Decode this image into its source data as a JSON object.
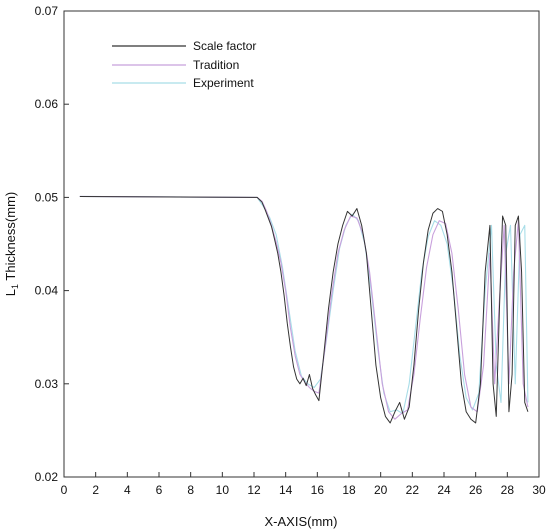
{
  "chart_data": {
    "type": "line",
    "xlabel": "X-AXIS(mm)",
    "ylabel_main": "L",
    "ylabel_sub": "1",
    "ylabel_rest": " Thickness(mm)",
    "xlim": [
      0,
      30
    ],
    "ylim": [
      0.02,
      0.07
    ],
    "x_ticks": [
      0,
      2,
      4,
      6,
      8,
      10,
      12,
      14,
      16,
      18,
      20,
      22,
      24,
      26,
      28,
      30
    ],
    "y_ticks": [
      0.02,
      0.03,
      0.04,
      0.05,
      0.06,
      0.07
    ],
    "x_tick_labels": [
      "0",
      "2",
      "4",
      "6",
      "8",
      "10",
      "12",
      "14",
      "16",
      "18",
      "20",
      "22",
      "24",
      "26",
      "28",
      "30"
    ],
    "y_tick_labels": [
      "0.02",
      "0.03",
      "0.04",
      "0.05",
      "0.06",
      "0.07"
    ],
    "grid": false,
    "legend_position": "top-left",
    "series": [
      {
        "name": "Scale factor",
        "color": "#333333",
        "x": [
          1.0,
          12.2,
          12.5,
          12.7,
          12.9,
          13.1,
          13.3,
          13.5,
          13.7,
          13.9,
          14.1,
          14.3,
          14.5,
          14.7,
          14.9,
          15.1,
          15.3,
          15.5,
          15.7,
          15.9,
          16.1,
          16.4,
          16.7,
          17.0,
          17.3,
          17.6,
          17.9,
          18.2,
          18.5,
          18.8,
          19.1,
          19.4,
          19.7,
          20.0,
          20.3,
          20.6,
          20.9,
          21.2,
          21.5,
          21.8,
          22.1,
          22.4,
          22.7,
          23.0,
          23.3,
          23.6,
          23.9,
          24.2,
          24.5,
          24.8,
          25.1,
          25.4,
          25.7,
          26.0,
          26.3,
          26.6,
          26.9,
          27.1,
          27.3,
          27.5,
          27.7,
          27.9,
          28.1,
          28.3,
          28.5,
          28.7,
          28.9,
          29.1,
          29.3
        ],
        "y": [
          0.0501,
          0.05,
          0.0495,
          0.0487,
          0.0478,
          0.0469,
          0.0455,
          0.044,
          0.042,
          0.0395,
          0.0365,
          0.034,
          0.0318,
          0.0305,
          0.03,
          0.0306,
          0.0298,
          0.031,
          0.0295,
          0.0288,
          0.0282,
          0.033,
          0.038,
          0.042,
          0.045,
          0.047,
          0.0485,
          0.048,
          0.0488,
          0.047,
          0.044,
          0.038,
          0.032,
          0.0285,
          0.0265,
          0.0258,
          0.027,
          0.028,
          0.0262,
          0.0275,
          0.032,
          0.038,
          0.043,
          0.0465,
          0.0483,
          0.0488,
          0.0485,
          0.046,
          0.042,
          0.036,
          0.03,
          0.027,
          0.0262,
          0.0258,
          0.03,
          0.042,
          0.047,
          0.03,
          0.0265,
          0.038,
          0.048,
          0.047,
          0.027,
          0.031,
          0.047,
          0.048,
          0.042,
          0.028,
          0.027
        ]
      },
      {
        "name": "Tradition",
        "color": "#c8a0dc",
        "x": [
          1.0,
          12.2,
          12.5,
          12.8,
          13.1,
          13.4,
          13.7,
          14.0,
          14.3,
          14.6,
          14.9,
          15.2,
          15.5,
          15.8,
          16.1,
          16.5,
          16.9,
          17.3,
          17.7,
          18.1,
          18.5,
          18.9,
          19.3,
          19.7,
          20.1,
          20.5,
          20.9,
          21.3,
          21.7,
          22.1,
          22.5,
          22.9,
          23.3,
          23.7,
          24.1,
          24.5,
          24.9,
          25.3,
          25.7,
          26.1,
          26.5,
          26.9,
          27.2,
          27.5,
          27.8,
          28.1,
          28.4,
          28.7,
          29.0,
          29.3
        ],
        "y": [
          0.0501,
          0.05,
          0.0496,
          0.0485,
          0.047,
          0.0452,
          0.043,
          0.04,
          0.036,
          0.033,
          0.031,
          0.0302,
          0.0296,
          0.0292,
          0.029,
          0.034,
          0.0395,
          0.044,
          0.0465,
          0.048,
          0.0478,
          0.046,
          0.042,
          0.036,
          0.03,
          0.027,
          0.0262,
          0.0268,
          0.0272,
          0.031,
          0.037,
          0.0425,
          0.046,
          0.0475,
          0.0472,
          0.044,
          0.038,
          0.031,
          0.0275,
          0.027,
          0.032,
          0.044,
          0.03,
          0.039,
          0.047,
          0.03,
          0.042,
          0.0475,
          0.03,
          0.0275
        ]
      },
      {
        "name": "Experiment",
        "color": "#a8dde8",
        "x": [
          1.0,
          12.2,
          12.6,
          13.0,
          13.4,
          13.8,
          14.2,
          14.6,
          15.0,
          15.4,
          15.8,
          16.2,
          16.6,
          17.0,
          17.4,
          17.8,
          18.2,
          18.6,
          19.0,
          19.4,
          19.8,
          20.2,
          20.6,
          21.0,
          21.4,
          21.8,
          22.2,
          22.6,
          23.0,
          23.4,
          23.8,
          24.2,
          24.6,
          25.0,
          25.4,
          25.8,
          26.2,
          26.6,
          27.0,
          27.3,
          27.6,
          27.9,
          28.2,
          28.5,
          28.8,
          29.1,
          29.3
        ],
        "y": [
          0.0501,
          0.05,
          0.049,
          0.0478,
          0.046,
          0.0425,
          0.038,
          0.0335,
          0.0308,
          0.03,
          0.0296,
          0.0305,
          0.035,
          0.04,
          0.0445,
          0.047,
          0.0482,
          0.0475,
          0.045,
          0.04,
          0.034,
          0.029,
          0.027,
          0.0272,
          0.0268,
          0.03,
          0.036,
          0.042,
          0.0458,
          0.0475,
          0.047,
          0.045,
          0.04,
          0.033,
          0.0285,
          0.0272,
          0.029,
          0.04,
          0.047,
          0.032,
          0.028,
          0.044,
          0.047,
          0.03,
          0.046,
          0.047,
          0.028
        ]
      }
    ]
  }
}
